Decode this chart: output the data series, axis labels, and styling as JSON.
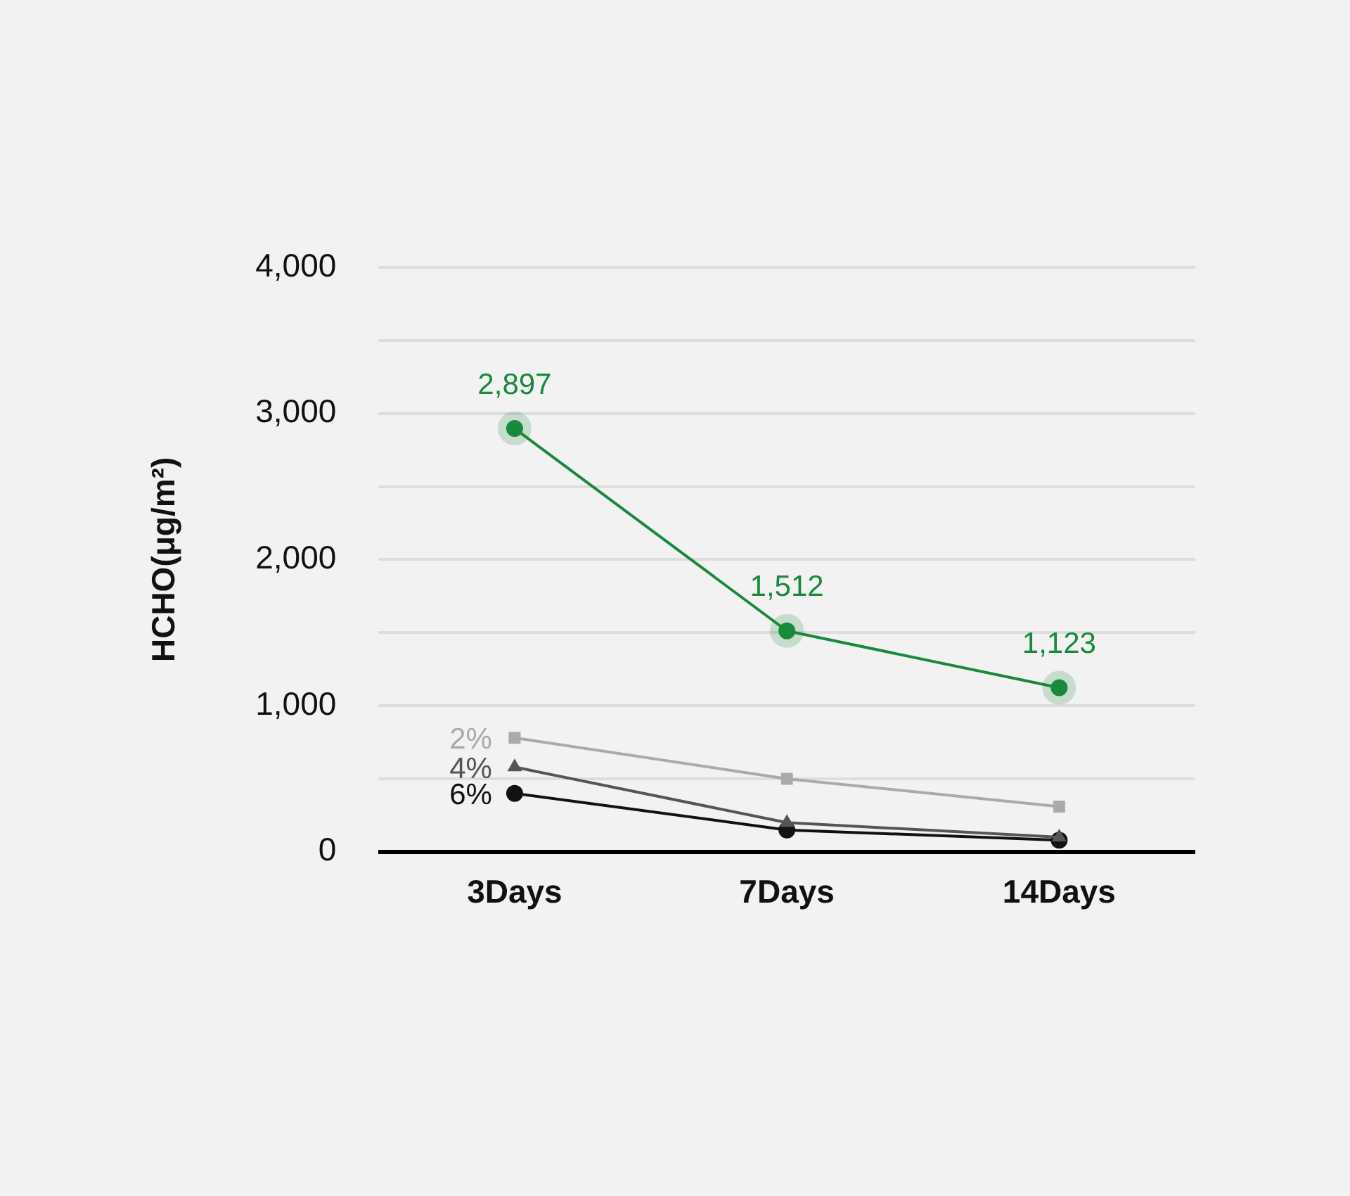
{
  "chart_data": {
    "type": "line",
    "ylabel": "HCHO(μg/m²)",
    "categories": [
      "3Days",
      "7Days",
      "14Days"
    ],
    "ylim": [
      0,
      4000
    ],
    "yticks": [
      {
        "value": 0,
        "label": "0"
      },
      {
        "value": 500,
        "label": null
      },
      {
        "value": 1000,
        "label": "1,000"
      },
      {
        "value": 1500,
        "label": null
      },
      {
        "value": 2000,
        "label": "2,000"
      },
      {
        "value": 2500,
        "label": null
      },
      {
        "value": 3000,
        "label": "3,000"
      },
      {
        "value": 3500,
        "label": null
      },
      {
        "value": 4000,
        "label": "4,000"
      }
    ],
    "grid": "y",
    "legend": false,
    "line_style": "solid",
    "series": [
      {
        "color": "#178a3c",
        "marker": "circle",
        "values": [
          2897,
          1512,
          1123
        ],
        "value_labels": [
          "2,897",
          "1,512",
          "1,123"
        ]
      },
      {
        "name": "2%",
        "color": "#aaaaaa",
        "marker": "square",
        "values": [
          780,
          500,
          310
        ]
      },
      {
        "name": "4%",
        "color": "#555555",
        "marker": "triangle",
        "values": [
          580,
          200,
          100
        ]
      },
      {
        "name": "6%",
        "color": "#111111",
        "marker": "circle",
        "values": [
          400,
          150,
          80
        ]
      }
    ]
  }
}
